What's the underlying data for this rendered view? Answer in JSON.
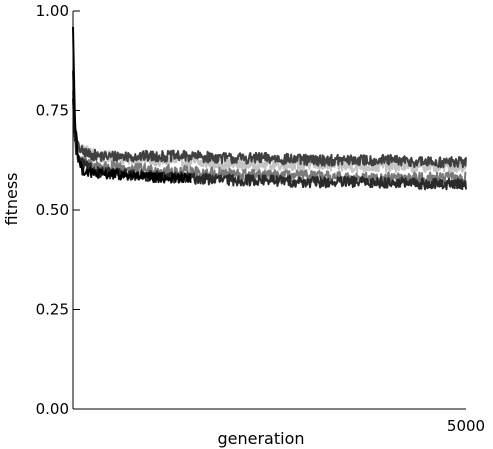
{
  "chart_data": {
    "type": "line",
    "title": "",
    "xlabel": "generation",
    "ylabel": "fitness",
    "xlim": [
      0,
      5000
    ],
    "ylim": [
      0.0,
      1.0
    ],
    "x_tick_labels": [
      "5000"
    ],
    "y_tick_labels": [
      "0.00",
      "0.25",
      "0.50",
      "0.75",
      "1.00"
    ],
    "y_ticks": [
      0.0,
      0.25,
      0.5,
      0.75,
      1.0
    ],
    "grid": false,
    "legend": "none",
    "series": [
      {
        "color": "#c4c4c4",
        "x": [
          0,
          25,
          60,
          120,
          200,
          350,
          600,
          1000,
          1500,
          2000,
          2500,
          3000,
          3500,
          4000,
          4500,
          5000
        ],
        "y": [
          0.82,
          0.7,
          0.66,
          0.655,
          0.645,
          0.635,
          0.63,
          0.625,
          0.62,
          0.615,
          0.615,
          0.615,
          0.61,
          0.61,
          0.61,
          0.61
        ],
        "noise": 0.015
      },
      {
        "color": "#404040",
        "x": [
          0,
          25,
          60,
          120,
          200,
          350,
          600,
          1000,
          1500,
          2000,
          2500,
          3000,
          3500,
          4000,
          4500,
          5000
        ],
        "y": [
          0.85,
          0.71,
          0.66,
          0.645,
          0.64,
          0.635,
          0.635,
          0.635,
          0.635,
          0.63,
          0.63,
          0.625,
          0.625,
          0.625,
          0.62,
          0.62
        ],
        "noise": 0.014
      },
      {
        "color": "#7a7a7a",
        "x": [
          0,
          25,
          60,
          120,
          200,
          350,
          600,
          1000,
          1500,
          2000,
          2500,
          3000,
          3500,
          4000,
          4500,
          5000
        ],
        "y": [
          0.8,
          0.68,
          0.64,
          0.62,
          0.615,
          0.61,
          0.605,
          0.6,
          0.595,
          0.59,
          0.585,
          0.585,
          0.58,
          0.58,
          0.58,
          0.58
        ],
        "noise": 0.015
      },
      {
        "color": "#2a2a2a",
        "x": [
          0,
          25,
          60,
          120,
          200,
          350,
          600,
          1000,
          1500,
          2000,
          2500,
          3000,
          3500,
          4000,
          4500,
          5000
        ],
        "y": [
          0.78,
          0.67,
          0.63,
          0.615,
          0.605,
          0.595,
          0.59,
          0.585,
          0.58,
          0.575,
          0.575,
          0.57,
          0.57,
          0.57,
          0.565,
          0.565
        ],
        "noise": 0.014
      },
      {
        "color": "#000000",
        "x": [
          0,
          10,
          25,
          50,
          80,
          120,
          200,
          300,
          500,
          800,
          1100,
          1250,
          1500
        ],
        "y": [
          0.96,
          0.86,
          0.72,
          0.66,
          0.62,
          0.6,
          0.595,
          0.59,
          0.59,
          0.585,
          0.58,
          0.58,
          0.58
        ],
        "noise": 0.012
      }
    ]
  }
}
